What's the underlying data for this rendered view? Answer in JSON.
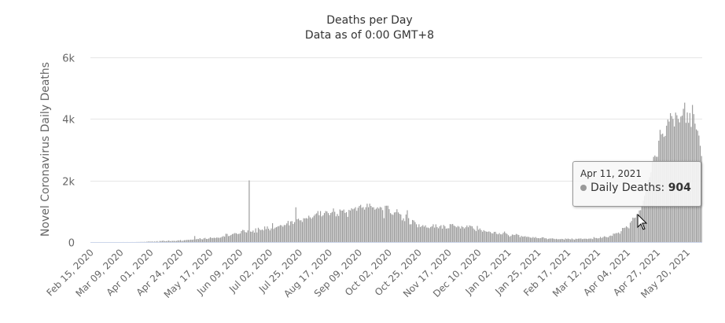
{
  "chart_data": {
    "type": "bar",
    "title": "Deaths per Day",
    "subtitle": "Data as of 0:00 GMT+8",
    "xlabel": "",
    "ylabel": "Novel Coronavirus Daily Deaths",
    "ylim": [
      0,
      6000
    ],
    "yticks": [
      "0",
      "2k",
      "4k",
      "6k"
    ],
    "ytick_values": [
      0,
      2000,
      4000,
      6000
    ],
    "grid": true,
    "legend": "none",
    "bar_color": "#999999",
    "start_date": "2020-02-15",
    "xtick_labels": [
      "Feb 15, 2020",
      "Mar 09, 2020",
      "Apr 01, 2020",
      "Apr 24, 2020",
      "May 17, 2020",
      "Jun 09, 2020",
      "Jul 02, 2020",
      "Jul 25, 2020",
      "Aug 17, 2020",
      "Sep 09, 2020",
      "Oct 02, 2020",
      "Oct 25, 2020",
      "Nov 17, 2020",
      "Dec 10, 2020",
      "Jan 02, 2021",
      "Jan 25, 2021",
      "Feb 17, 2021",
      "Mar 12, 2021",
      "Apr 04, 2021",
      "Apr 27, 2021",
      "May 20, 2021"
    ],
    "series": [
      {
        "name": "Daily Deaths",
        "values": [
          0,
          0,
          0,
          0,
          0,
          0,
          0,
          0,
          0,
          0,
          0,
          0,
          0,
          0,
          0,
          0,
          0,
          0,
          0,
          0,
          0,
          0,
          0,
          0,
          0,
          1,
          0,
          0,
          1,
          0,
          0,
          1,
          1,
          0,
          1,
          2,
          3,
          3,
          4,
          6,
          4,
          7,
          5,
          11,
          16,
          20,
          12,
          20,
          12,
          17,
          13,
          32,
          4,
          35,
          33,
          40,
          46,
          27,
          31,
          37,
          51,
          28,
          36,
          38,
          40,
          35,
          36,
          56,
          50,
          66,
          36,
          46,
          60,
          62,
          70,
          71,
          70,
          80,
          72,
          83,
          195,
          89,
          103,
          95,
          128,
          97,
          87,
          121,
          136,
          100,
          103,
          120,
          157,
          134,
          132,
          140,
          132,
          148,
          142,
          137,
          146,
          170,
          194,
          175,
          269,
          265,
          193,
          204,
          230,
          260,
          273,
          294,
          286,
          261,
          266,
          279,
          357,
          396,
          386,
          325,
          311,
          380,
          2003,
          341,
          334,
          375,
          306,
          445,
          312,
          465,
          418,
          384,
          410,
          380,
          507,
          418,
          507,
          434,
          379,
          442,
          613,
          425,
          467,
          482,
          507,
          519,
          551,
          543,
          500,
          553,
          553,
          606,
          687,
          543,
          671,
          681,
          587,
          648,
          1129,
          740,
          757,
          705,
          708,
          654,
          775,
          768,
          779,
          764,
          857,
          803,
          760,
          803,
          857,
          904,
          933,
          1007,
          871,
          1007,
          834,
          871,
          942,
          1007,
          996,
          941,
          876,
          944,
          977,
          1092,
          983,
          836,
          912,
          848,
          1059,
          1023,
          1021,
          1057,
          948,
          971,
          819,
          1045,
          1025,
          1096,
          1065,
          1089,
          1133,
          1016,
          1115,
          1172,
          1209,
          1114,
          1136,
          1054,
          1132,
          1246,
          1132,
          1247,
          1174,
          1129,
          1130,
          1053,
          1085,
          1129,
          1089,
          1141,
          1124,
          1039,
          776,
          1179,
          1181,
          1181,
          1069,
          940,
          903,
          884,
          961,
          971,
          1066,
          964,
          918,
          895,
          706,
          770,
          680,
          895,
          1033,
          777,
          575,
          579,
          717,
          702,
          650,
          578,
          480,
          577,
          488,
          517,
          551,
          500,
          543,
          472,
          470,
          449,
          490,
          514,
          577,
          470,
          576,
          490,
          448,
          512,
          547,
          435,
          554,
          516,
          435,
          447,
          449,
          584,
          576,
          588,
          537,
          511,
          479,
          522,
          500,
          440,
          518,
          485,
          443,
          482,
          540,
          482,
          540,
          524,
          512,
          443,
          402,
          355,
          524,
          400,
          442,
          391,
          336,
          387,
          355,
          338,
          333,
          347,
          328,
          289,
          279,
          331,
          333,
          268,
          251,
          291,
          252,
          251,
          299,
          342,
          290,
          264,
          222,
          175,
          201,
          246,
          234,
          228,
          264,
          246,
          228,
          157,
          201,
          175,
          181,
          191,
          165,
          175,
          162,
          145,
          137,
          163,
          138,
          162,
          131,
          127,
          123,
          131,
          153,
          155,
          121,
          127,
          94,
          107,
          116,
          117,
          120,
          108,
          95,
          106,
          90,
          96,
          94,
          104,
          100,
          78,
          116,
          99,
          113,
          101,
          87,
          117,
          91,
          78,
          109,
          101,
          111,
          113,
          117,
          95,
          106,
          110,
          108,
          98,
          111,
          113,
          113,
          97,
          161,
          133,
          131,
          117,
          127,
          167,
          131,
          161,
          188,
          172,
          157,
          154,
          199,
          212,
          201,
          275,
          270,
          291,
          291,
          312,
          271,
          353,
          459,
          458,
          469,
          512,
          478,
          446,
          630,
          685,
          793,
          780,
          794,
          904,
          879,
          1027,
          1038,
          1185,
          1341,
          1501,
          1620,
          1761,
          2023,
          2104,
          2263,
          2624,
          2767,
          2812,
          2771,
          2771,
          3293,
          3645,
          3498,
          3523,
          3417,
          3449,
          3780,
          3980,
          3915,
          4187,
          4092,
          4000,
          3754,
          4205,
          4120,
          4000,
          3890,
          4077,
          4106,
          4329,
          4529,
          3874,
          4209,
          3874,
          4194,
          3741,
          4454,
          4157,
          3847,
          3660,
          3617,
          3460,
          3128,
          2795
        ]
      }
    ]
  },
  "tooltip": {
    "date": "Apr 11, 2021",
    "series_label": "Daily Deaths:",
    "value": "904",
    "highlight_index": 421
  }
}
